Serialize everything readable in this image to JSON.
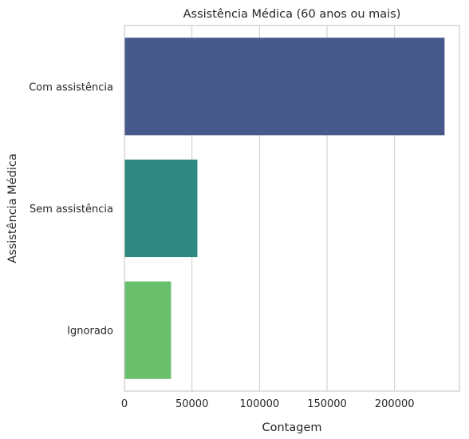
{
  "chart_data": {
    "type": "bar",
    "orientation": "horizontal",
    "title": "Assistência Médica (60 anos ou mais)",
    "xlabel": "Contagem",
    "ylabel": "Assistência Médica",
    "categories": [
      "Com assistência",
      "Sem assistência",
      "Ignorado"
    ],
    "values": [
      237000,
      54000,
      34500
    ],
    "colors": [
      "#46598a",
      "#2f8980",
      "#6abf6c"
    ],
    "xlim": [
      0,
      248000
    ],
    "xticks": [
      0,
      50000,
      100000,
      150000,
      200000
    ],
    "grid": "vertical",
    "legend": "none"
  }
}
